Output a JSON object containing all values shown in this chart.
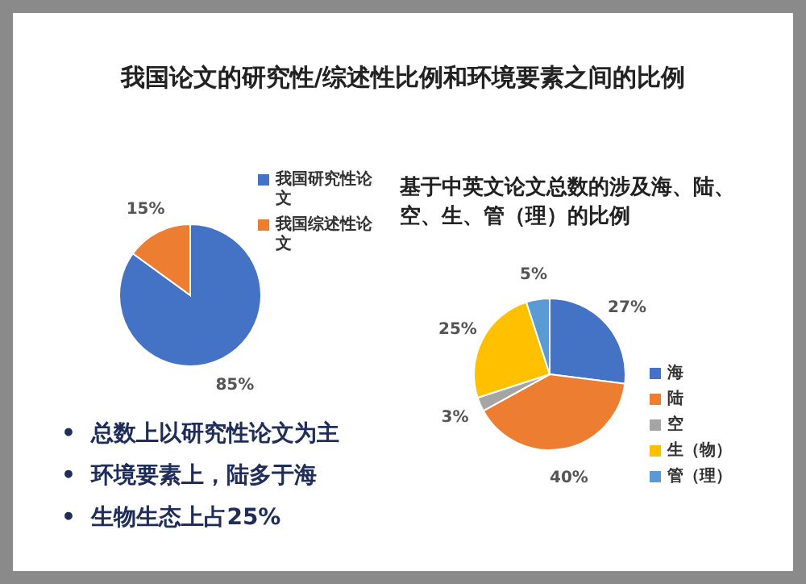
{
  "chart_data": [
    {
      "type": "pie",
      "title": "我国论文的研究性/综述性比例和环境要素之间的比例",
      "categories": [
        "我国研究性论文",
        "我国综述性论文"
      ],
      "values": [
        85,
        15
      ],
      "colors": [
        "#4472c4",
        "#ed7d31"
      ],
      "value_labels": [
        "85%",
        "15%"
      ],
      "legend": "right",
      "annotations": [
        "•  总数上以研究性论文为主",
        "•  环境要素上，陆多于海",
        "•  生物生态上占25%"
      ]
    },
    {
      "type": "pie",
      "title": "基于中英文论文总数的涉及海、陆、空、生、管（理）的比例",
      "categories": [
        "海",
        "陆",
        "空",
        "生（物）",
        "管（理）"
      ],
      "values": [
        27,
        40,
        3,
        25,
        5
      ],
      "colors": [
        "#4472c4",
        "#ed7d31",
        "#a5a5a5",
        "#ffc000",
        "#5b9bd5"
      ],
      "value_labels": [
        "27%",
        "40%",
        "3%",
        "25%",
        "5%"
      ],
      "legend": "right"
    }
  ]
}
